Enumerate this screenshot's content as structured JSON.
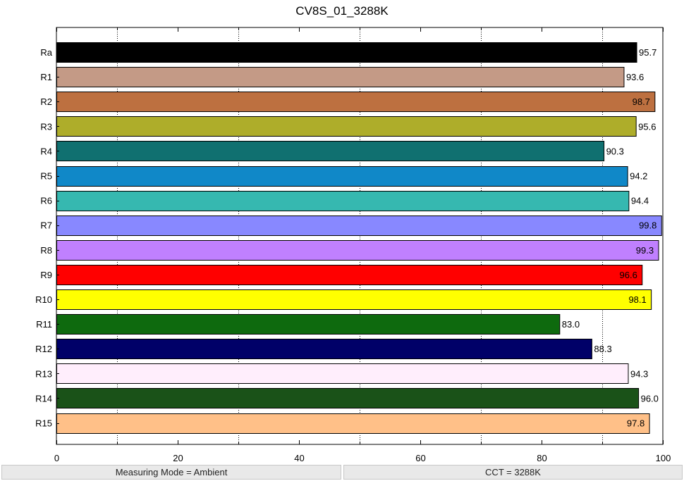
{
  "chart_data": {
    "type": "bar",
    "orientation": "horizontal",
    "title": "CV8S_01_3288K",
    "xlabel": "",
    "ylabel": "",
    "xlim": [
      0,
      100
    ],
    "x_ticks": [
      0,
      20,
      40,
      60,
      80,
      100
    ],
    "minor_ticks": [
      10,
      30,
      50,
      70,
      90
    ],
    "grid": "dotted vertical lines at 10, 30, 50, 70, 90",
    "categories": [
      "Ra",
      "R1",
      "R2",
      "R3",
      "R4",
      "R5",
      "R6",
      "R7",
      "R8",
      "R9",
      "R10",
      "R11",
      "R12",
      "R13",
      "R14",
      "R15"
    ],
    "values": [
      95.7,
      93.6,
      98.7,
      95.6,
      90.3,
      94.2,
      94.4,
      99.8,
      99.3,
      96.6,
      98.1,
      83.0,
      88.3,
      94.3,
      96.0,
      97.8
    ],
    "value_labels": [
      "95.7",
      "93.6",
      "98.7",
      "95.6",
      "90.3",
      "94.2",
      "94.4",
      "99.8",
      "99.3",
      "96.6",
      "98.1",
      "83.0",
      "88.3",
      "94.3",
      "96.0",
      "97.8"
    ],
    "colors": [
      "#000000",
      "#c49a86",
      "#bd7040",
      "#aead2a",
      "#107070",
      "#1088c8",
      "#36b8b0",
      "#8888ff",
      "#c080ff",
      "#ff0000",
      "#ffff00",
      "#0e6a0e",
      "#000068",
      "#ffeefc",
      "#1a5218",
      "#ffc088"
    ]
  },
  "status": {
    "measuring_mode": "Measuring Mode = Ambient",
    "cct": "CCT = 3288K"
  }
}
